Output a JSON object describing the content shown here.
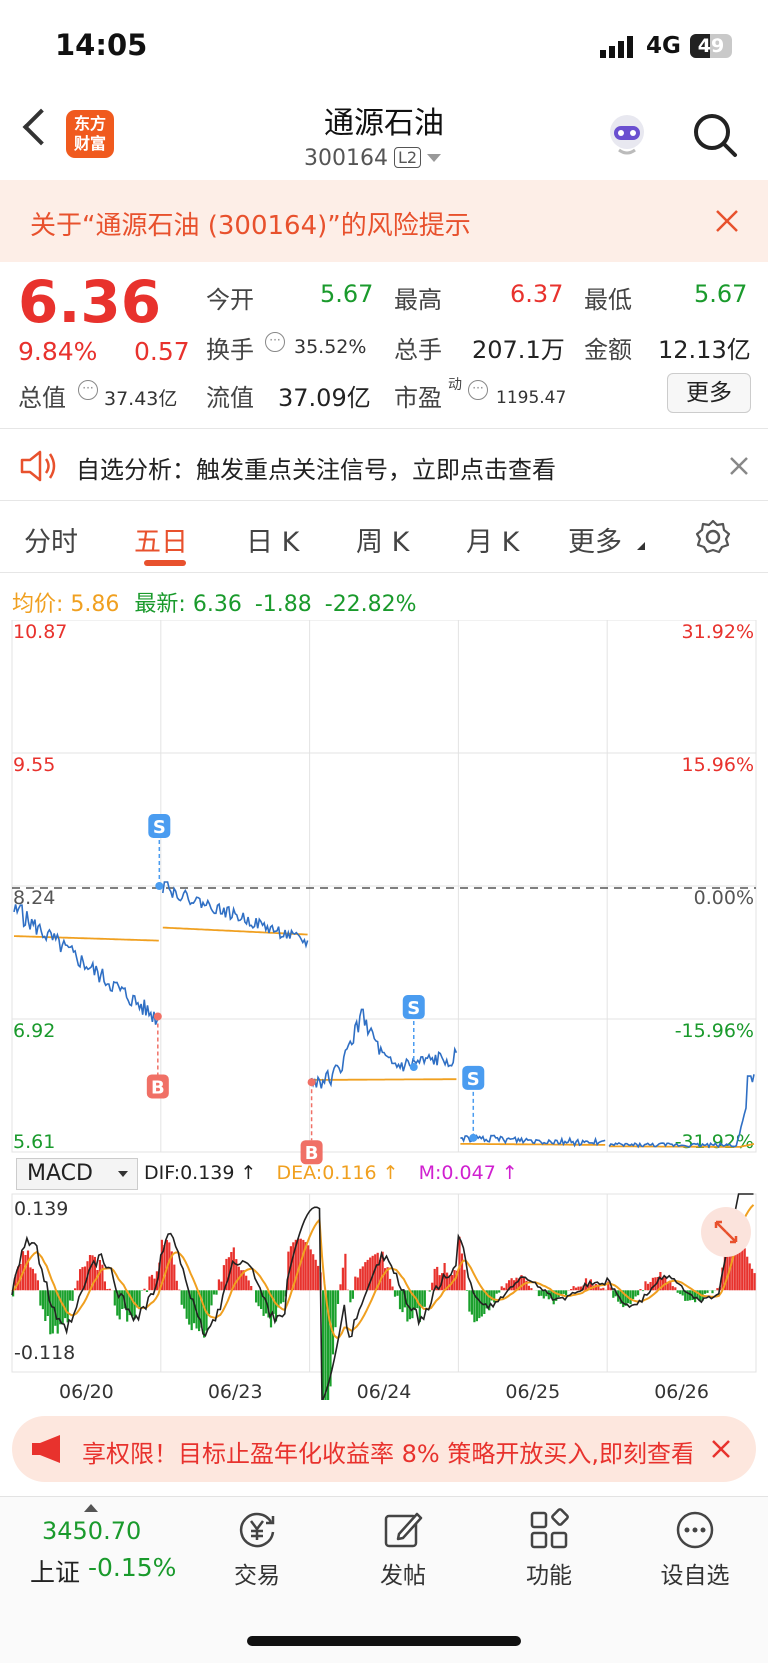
{
  "status": {
    "time": "14:05",
    "network": "4G",
    "battery": "49"
  },
  "header": {
    "logo_line1": "东方",
    "logo_line2": "财富",
    "stock_name": "通源石油",
    "stock_code": "300164",
    "level": "L2"
  },
  "risk_banner": {
    "text": "关于“通源石油 (300164)”的风险提示"
  },
  "quote": {
    "price": "6.36",
    "change_pct": "9.84%",
    "change": "0.57",
    "open_label": "今开",
    "open": "5.67",
    "high_label": "最高",
    "high": "6.37",
    "low_label": "最低",
    "low": "5.67",
    "turnover_label": "换手",
    "turnover": "35.52%",
    "volume_label": "总手",
    "volume": "207.1万",
    "amount_label": "金额",
    "amount": "12.13亿",
    "mktcap_label": "总值",
    "mktcap": "37.43亿",
    "float_label": "流值",
    "float": "37.09亿",
    "pe_label": "市盈",
    "pe_sup": "动",
    "pe": "1195.47",
    "more": "更多"
  },
  "analysis": {
    "text": "自选分析：触发重点关注信号，立即点击查看"
  },
  "tabs": [
    "分时",
    "五日",
    "日 K",
    "周 K",
    "月 K",
    "更多"
  ],
  "legend": {
    "avg_label": "均价:",
    "avg": "5.86",
    "latest_label": "最新:",
    "latest": "6.36",
    "chg": "-1.88",
    "chg_pct": "-22.82%"
  },
  "chart_data": [
    {
      "type": "line",
      "title": "",
      "x": [
        "06/20",
        "06/23",
        "06/24",
        "06/25",
        "06/26"
      ],
      "y_left_ticks": [
        "10.87",
        "9.55",
        "8.24",
        "6.92",
        "5.61"
      ],
      "y_right_ticks": [
        "31.92%",
        "15.96%",
        "0.00%",
        "-15.96%",
        "-31.92%"
      ],
      "ylim": [
        5.61,
        10.87
      ],
      "reference": 8.24,
      "series": [
        {
          "name": "",
          "color": "#2f6fc4"
        },
        {
          "name": "均价",
          "color": "#f0a020"
        }
      ],
      "markers": [
        {
          "label": "S",
          "day": "06/20",
          "value": 8.24
        },
        {
          "label": "B",
          "day": "06/20",
          "value": 6.95
        },
        {
          "label": "B",
          "day": "06/24",
          "value": 6.3
        },
        {
          "label": "S",
          "day": "06/24",
          "value": 6.45
        },
        {
          "label": "S",
          "day": "06/25",
          "value": 5.75
        }
      ]
    },
    {
      "type": "bar",
      "title": "MACD",
      "dif_label": "DIF:0.139 ↑",
      "dea_label": "DEA:0.116 ↑",
      "m_label": "M:0.047 ↑",
      "y_ticks": [
        "0.139",
        "-0.118"
      ],
      "ylim": [
        -0.118,
        0.139
      ]
    }
  ],
  "macd_selector": "MACD",
  "ad": {
    "text": "享权限！目标止盈年化收益率 8% 策略开放买入,即刻查看"
  },
  "nav": {
    "index_value": "3450.70",
    "index_name": "上证",
    "index_change": "-0.15%",
    "items": [
      "交易",
      "发帖",
      "功能",
      "设自选"
    ]
  }
}
